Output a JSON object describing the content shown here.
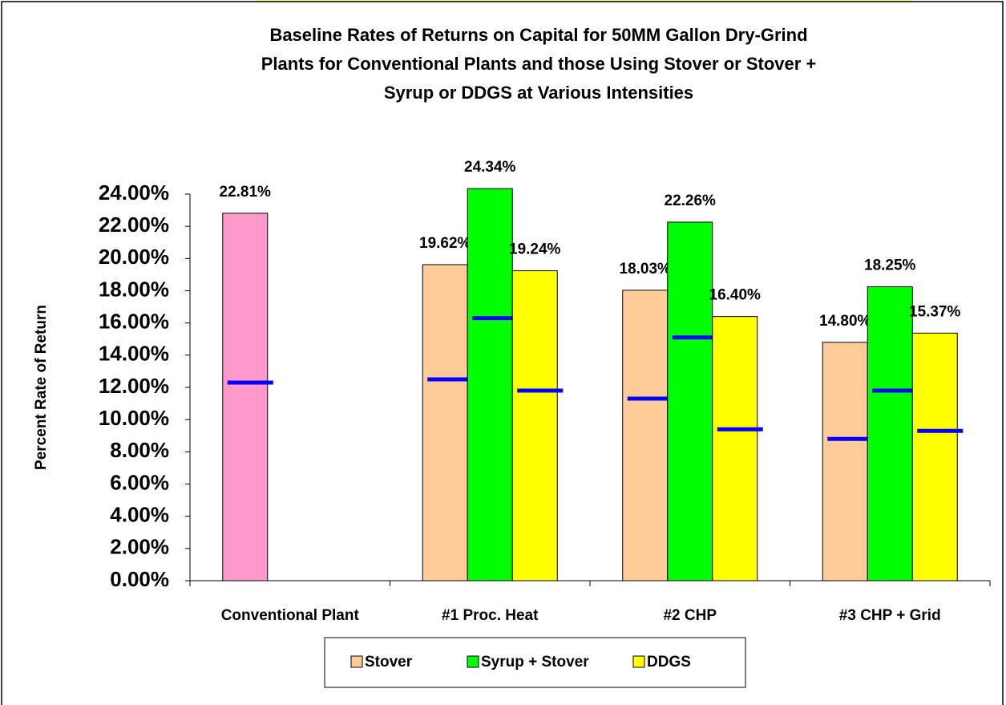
{
  "chart_data": {
    "type": "bar",
    "title_lines": [
      "Baseline Rates of Returns on Capital for 50MM Gallon Dry-Grind",
      "Plants for Conventional Plants and those Using Stover or Stover +",
      "Syrup or DDGS at Various Intensities"
    ],
    "y_label": "Percent Rate of Return",
    "categories": [
      "Conventional Plant",
      "#1 Proc. Heat",
      "#2 CHP",
      "#3 CHP + Grid"
    ],
    "series": [
      {
        "name": "Stover",
        "color": "#ffcc99",
        "point_colors": [
          "#ff99cc",
          null,
          null,
          null
        ],
        "values": [
          22.81,
          19.62,
          18.03,
          14.8
        ],
        "value_labels": [
          "22.81%",
          "19.62%",
          "18.03%",
          "14.80%"
        ],
        "marker_values": [
          12.3,
          12.5,
          11.3,
          8.8
        ]
      },
      {
        "name": "Syrup + Stover",
        "color": "#00ff00",
        "values": [
          null,
          24.34,
          22.26,
          18.25
        ],
        "value_labels": [
          null,
          "24.34%",
          "22.26%",
          "18.25%"
        ],
        "marker_values": [
          null,
          16.3,
          15.1,
          11.8
        ]
      },
      {
        "name": "DDGS",
        "color": "#ffff00",
        "values": [
          null,
          19.24,
          16.4,
          15.37
        ],
        "value_labels": [
          null,
          "19.24%",
          "16.40%",
          "15.37%"
        ],
        "marker_values": [
          null,
          11.8,
          9.4,
          9.3
        ]
      }
    ],
    "marker_color": "#0000ff",
    "ylim": [
      0,
      24
    ],
    "yticks": [
      {
        "value": 0,
        "label": "0.00%"
      },
      {
        "value": 2,
        "label": "2.00%"
      },
      {
        "value": 4,
        "label": "4.00%"
      },
      {
        "value": 6,
        "label": "6.00%"
      },
      {
        "value": 8,
        "label": "8.00%"
      },
      {
        "value": 10,
        "label": "10.00%"
      },
      {
        "value": 12,
        "label": "12.00%"
      },
      {
        "value": 14,
        "label": "14.00%"
      },
      {
        "value": 16,
        "label": "16.00%"
      },
      {
        "value": 18,
        "label": "18.00%"
      },
      {
        "value": 20,
        "label": "20.00%"
      },
      {
        "value": 22,
        "label": "22.00%"
      },
      {
        "value": 24,
        "label": "24.00%"
      }
    ],
    "legend": "bottom"
  }
}
